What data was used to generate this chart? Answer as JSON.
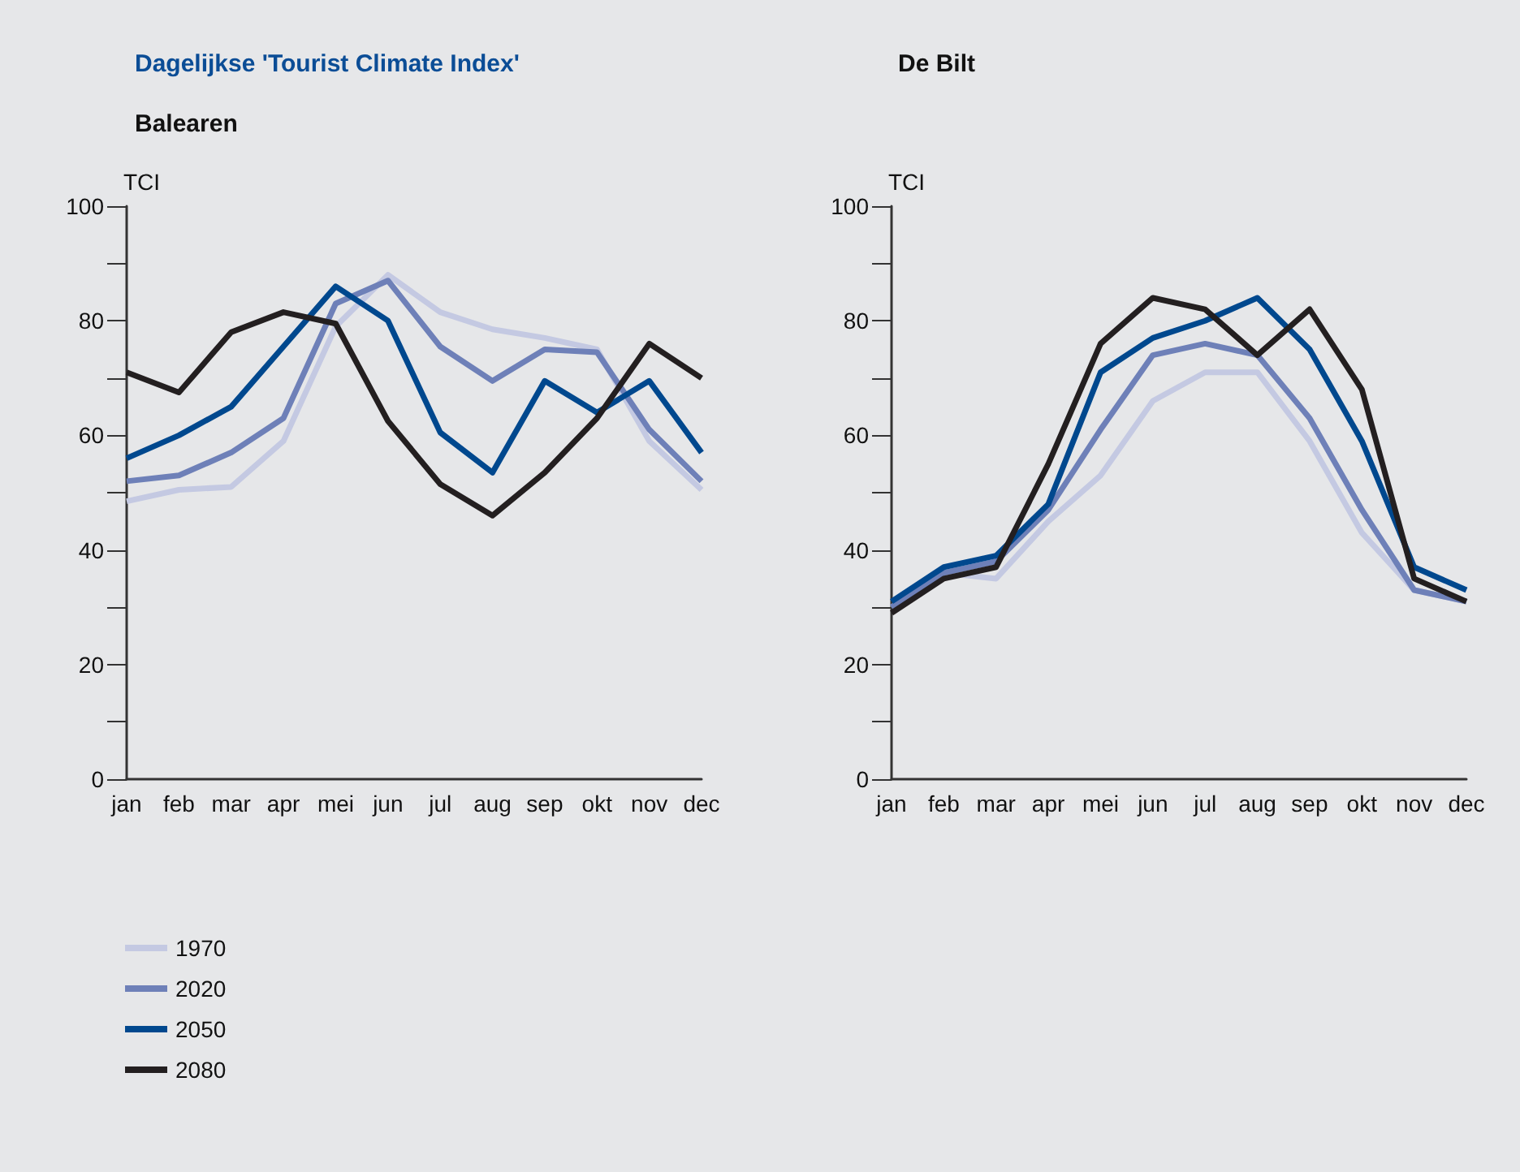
{
  "chart_data": [
    {
      "type": "line",
      "title": "Dagelijkse 'Tourist Climate Index'",
      "subtitle": "Balearen",
      "ylabel": "TCI",
      "categories": [
        "jan",
        "feb",
        "mar",
        "apr",
        "mei",
        "jun",
        "jul",
        "aug",
        "sep",
        "okt",
        "nov",
        "dec"
      ],
      "ylim": [
        0,
        100
      ],
      "yticks": [
        0,
        {
          "value": 10,
          "label": null
        },
        20,
        {
          "value": 30,
          "label": null
        },
        40,
        {
          "value": 50,
          "label": null
        },
        60,
        {
          "value": 70,
          "label": null
        },
        80,
        {
          "value": 90,
          "label": null
        },
        100
      ],
      "legend": "bottom left",
      "marker": "none",
      "line_style": "solid",
      "series": [
        {
          "name": "1970",
          "color": "#c4c9e2",
          "values": [
            48.5,
            50.5,
            51,
            59,
            79,
            88,
            81.5,
            78.5,
            77,
            75,
            59,
            50.5
          ]
        },
        {
          "name": "2020",
          "color": "#6e80b8",
          "values": [
            52,
            53,
            57,
            63,
            83,
            87,
            75.5,
            69.5,
            75,
            74.5,
            61,
            52
          ]
        },
        {
          "name": "2050",
          "color": "#00488e",
          "values": [
            56,
            60,
            65,
            75.5,
            86,
            80,
            60.5,
            53.5,
            69.5,
            64,
            69.5,
            57
          ]
        },
        {
          "name": "2080",
          "color": "#231f20",
          "values": [
            71,
            67.5,
            78,
            81.5,
            79.5,
            62.5,
            51.5,
            46,
            53.5,
            63,
            76,
            70
          ]
        }
      ]
    },
    {
      "type": "line",
      "title": "De Bilt",
      "ylabel": "TCI",
      "categories": [
        "jan",
        "feb",
        "mar",
        "apr",
        "mei",
        "jun",
        "jul",
        "aug",
        "sep",
        "okt",
        "nov",
        "dec"
      ],
      "ylim": [
        0,
        100
      ],
      "yticks": [
        0,
        {
          "value": 10,
          "label": null
        },
        20,
        {
          "value": 30,
          "label": null
        },
        40,
        {
          "value": 50,
          "label": null
        },
        60,
        {
          "value": 70,
          "label": null
        },
        80,
        {
          "value": 90,
          "label": null
        },
        100
      ],
      "marker": "none",
      "line_style": "solid",
      "series": [
        {
          "color": "#c4c9e2",
          "values": [
            30,
            36,
            35,
            45,
            53,
            66,
            71,
            71,
            59,
            43,
            33,
            31
          ]
        },
        {
          "color": "#6e80b8",
          "values": [
            30,
            36,
            38,
            47,
            61,
            74,
            76,
            74,
            63,
            47,
            33,
            31
          ]
        },
        {
          "color": "#00488e",
          "values": [
            31,
            37,
            39,
            48,
            71,
            77,
            80,
            84,
            75,
            59,
            37,
            33
          ]
        },
        {
          "color": "#231f20",
          "values": [
            29,
            35,
            37,
            55,
            76,
            84,
            82,
            74,
            82,
            68,
            35,
            31
          ]
        }
      ]
    }
  ]
}
